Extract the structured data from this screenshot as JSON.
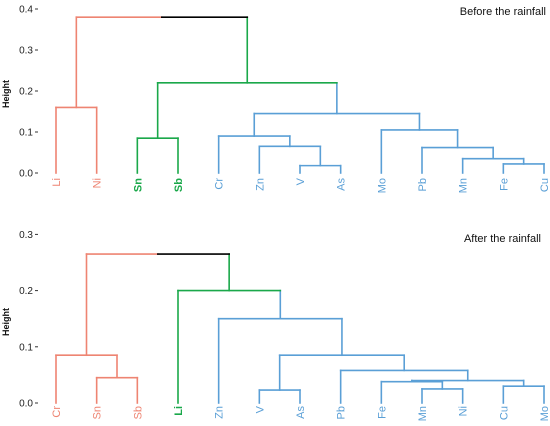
{
  "chart_data": [
    {
      "type": "dendrogram",
      "title": "Before the rainfall",
      "ylabel": "Height",
      "ylim": [
        0,
        0.4
      ],
      "yticks": [
        "0.0",
        "0.1",
        "0.2",
        "0.3",
        "0.4"
      ],
      "leaves": [
        "Li",
        "Ni",
        "Sn",
        "Sb",
        "Cr",
        "Zn",
        "V",
        "As",
        "Mo",
        "Pb",
        "Mn",
        "Fe",
        "Cu"
      ],
      "cluster_colors": {
        "red": "#ee8472",
        "green": "#1aa84a",
        "blue": "#5a9fd6",
        "root": "#000000"
      },
      "leaf_clusters": [
        "red",
        "red",
        "green",
        "green",
        "blue",
        "blue",
        "blue",
        "blue",
        "blue",
        "blue",
        "blue",
        "blue",
        "blue"
      ],
      "merges": [
        {
          "a": "Li",
          "b": "Ni",
          "height": 0.16,
          "cluster": "red"
        },
        {
          "a": "Sn",
          "b": "Sb",
          "height": 0.085,
          "cluster": "green"
        },
        {
          "a": "V",
          "b": "As",
          "height": 0.018,
          "cluster": "blue"
        },
        {
          "a": "Fe",
          "b": "Cu",
          "height": 0.022,
          "cluster": "blue"
        },
        {
          "a": "Mn",
          "b": "Fe+Cu",
          "height": 0.035,
          "cluster": "blue"
        },
        {
          "a": "Zn",
          "b": "V+As",
          "height": 0.065,
          "cluster": "blue"
        },
        {
          "a": "Pb",
          "b": "Mn+Fe+Cu",
          "height": 0.062,
          "cluster": "blue"
        },
        {
          "a": "Cr",
          "b": "Zn+V+As",
          "height": 0.09,
          "cluster": "blue"
        },
        {
          "a": "Mo",
          "b": "Pb+Mn+Fe+Cu",
          "height": 0.105,
          "cluster": "blue"
        },
        {
          "a": "Cr..As",
          "b": "Mo..Cu",
          "height": 0.145,
          "cluster": "blue"
        },
        {
          "a": "Sn+Sb",
          "b": "Cr..Cu",
          "height": 0.22,
          "cluster": "green"
        },
        {
          "a": "Li+Ni",
          "b": "Sn..Cu",
          "height": 0.38,
          "cluster": "root"
        }
      ]
    },
    {
      "type": "dendrogram",
      "title": "After the rainfall",
      "ylabel": "Height",
      "ylim": [
        0,
        0.3
      ],
      "yticks": [
        "0.0",
        "0.1",
        "0.2",
        "0.3"
      ],
      "leaves": [
        "Cr",
        "Sn",
        "Sb",
        "Li",
        "Zn",
        "V",
        "As",
        "Pb",
        "Fe",
        "Mn",
        "Ni",
        "Cu",
        "Mo"
      ],
      "cluster_colors": {
        "red": "#ee8472",
        "green": "#1aa84a",
        "blue": "#5a9fd6",
        "root": "#000000"
      },
      "leaf_clusters": [
        "red",
        "red",
        "red",
        "green",
        "blue",
        "blue",
        "blue",
        "blue",
        "blue",
        "blue",
        "blue",
        "blue",
        "blue"
      ],
      "merges": [
        {
          "a": "Sn",
          "b": "Sb",
          "height": 0.045,
          "cluster": "red"
        },
        {
          "a": "Cr",
          "b": "Sn+Sb",
          "height": 0.085,
          "cluster": "red"
        },
        {
          "a": "V",
          "b": "As",
          "height": 0.023,
          "cluster": "blue"
        },
        {
          "a": "Mn",
          "b": "Ni",
          "height": 0.025,
          "cluster": "blue"
        },
        {
          "a": "Cu",
          "b": "Mo",
          "height": 0.03,
          "cluster": "blue"
        },
        {
          "a": "Fe",
          "b": "Mn+Ni",
          "height": 0.038,
          "cluster": "blue"
        },
        {
          "a": "Fe+Mn+Ni",
          "b": "Cu+Mo",
          "height": 0.04,
          "cluster": "blue"
        },
        {
          "a": "Pb",
          "b": "Fe..Mo",
          "height": 0.058,
          "cluster": "blue"
        },
        {
          "a": "V+As",
          "b": "Pb..Mo",
          "height": 0.085,
          "cluster": "blue"
        },
        {
          "a": "Zn",
          "b": "V..Mo",
          "height": 0.15,
          "cluster": "blue"
        },
        {
          "a": "Li",
          "b": "Zn..Mo",
          "height": 0.2,
          "cluster": "green"
        },
        {
          "a": "Cr+Sn+Sb",
          "b": "Li..Mo",
          "height": 0.265,
          "cluster": "root"
        }
      ]
    }
  ]
}
